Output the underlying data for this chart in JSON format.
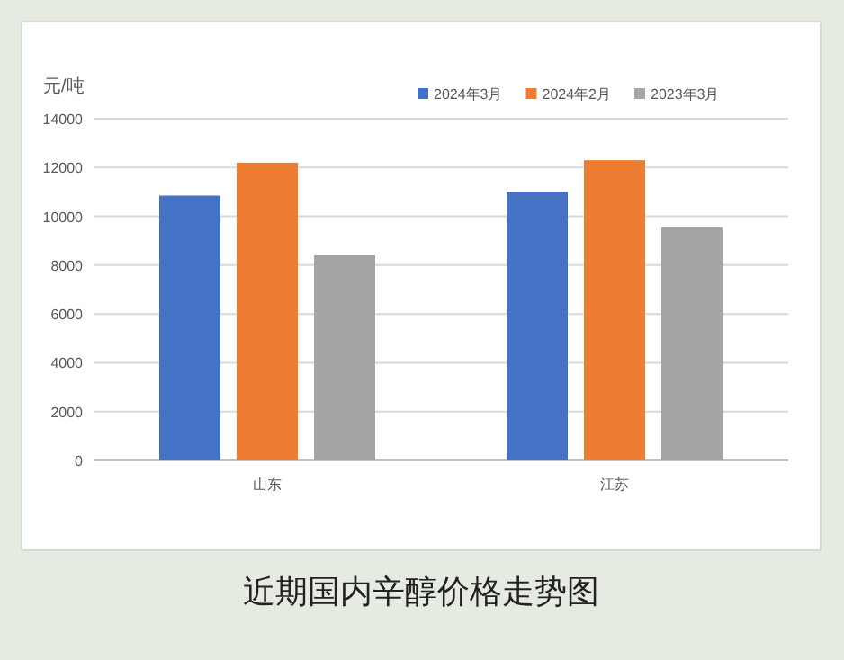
{
  "chart_data": {
    "type": "bar",
    "title": "近期国内辛醇价格走势图",
    "ylabel": "元/吨",
    "categories": [
      "山东",
      "江苏"
    ],
    "series": [
      {
        "name": "2024年3月",
        "color": "#4472c4",
        "values": [
          10850,
          11000
        ]
      },
      {
        "name": "2024年2月",
        "color": "#ed7d31",
        "values": [
          12200,
          12300
        ]
      },
      {
        "name": "2023年3月",
        "color": "#a5a5a5",
        "values": [
          8400,
          9550
        ]
      }
    ],
    "ylim": [
      0,
      14000
    ],
    "yticks": [
      0,
      2000,
      4000,
      6000,
      8000,
      10000,
      12000,
      14000
    ],
    "grid": "y",
    "legend": "top right"
  }
}
